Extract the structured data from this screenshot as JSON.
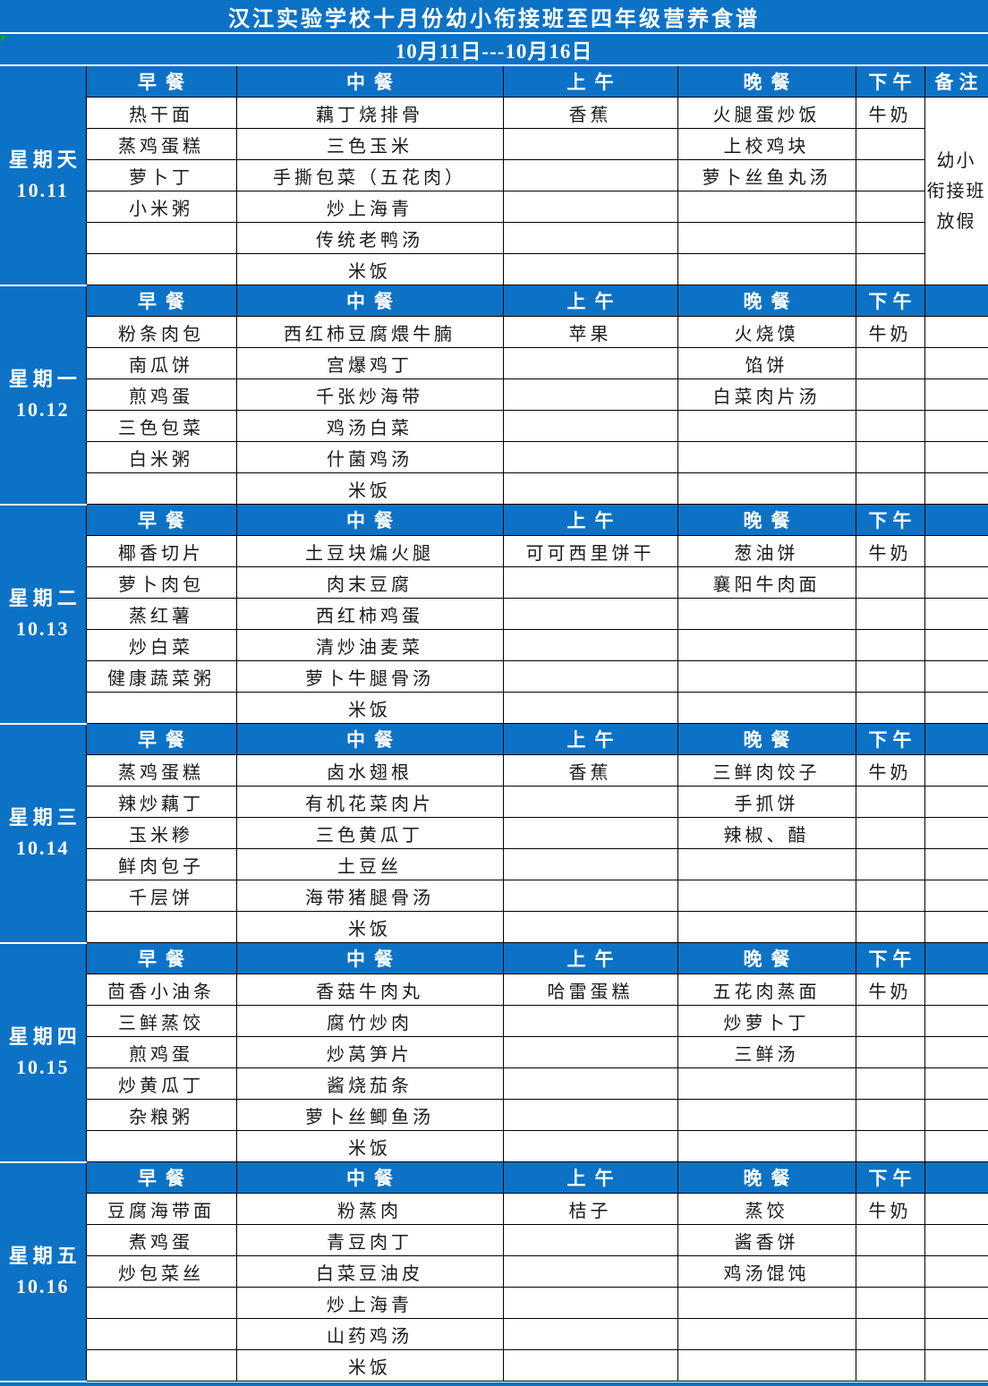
{
  "title": "汉江实验学校十月份幼小衔接班至四年级营养食谱",
  "date_range": "10月11日---10月16日",
  "columns": [
    "早餐",
    "中餐",
    "上午",
    "晚餐",
    "下午",
    "备注"
  ],
  "colors": {
    "primary_blue": "#0c72c6",
    "grid_line": "#000000",
    "header_text": "#ffffff",
    "food_text": "#1a1a1a"
  },
  "days": [
    {
      "weekday": "星期天",
      "date": "10.11",
      "remark": "幼小\n衔接班\n放假",
      "rows": [
        [
          "热干面",
          "藕丁烧排骨",
          "香蕉",
          "火腿蛋炒饭",
          "牛奶"
        ],
        [
          "蒸鸡蛋糕",
          "三色玉米",
          "",
          "上校鸡块",
          ""
        ],
        [
          "萝卜丁",
          "手撕包菜（五花肉）",
          "",
          "萝卜丝鱼丸汤",
          ""
        ],
        [
          "小米粥",
          "炒上海青",
          "",
          "",
          ""
        ],
        [
          "",
          "传统老鸭汤",
          "",
          "",
          ""
        ],
        [
          "",
          "米饭",
          "",
          "",
          ""
        ]
      ]
    },
    {
      "weekday": "星期一",
      "date": "10.12",
      "remark": "",
      "rows": [
        [
          "粉条肉包",
          "西红柿豆腐煨牛腩",
          "苹果",
          "火烧馍",
          "牛奶"
        ],
        [
          "南瓜饼",
          "宫爆鸡丁",
          "",
          "馅饼",
          ""
        ],
        [
          "煎鸡蛋",
          "千张炒海带",
          "",
          "白菜肉片汤",
          ""
        ],
        [
          "三色包菜",
          "鸡汤白菜",
          "",
          "",
          ""
        ],
        [
          "白米粥",
          "什菌鸡汤",
          "",
          "",
          ""
        ],
        [
          "",
          "米饭",
          "",
          "",
          ""
        ]
      ]
    },
    {
      "weekday": "星期二",
      "date": "10.13",
      "remark": "",
      "rows": [
        [
          "椰香切片",
          "土豆块煸火腿",
          "可可西里饼干",
          "葱油饼",
          "牛奶"
        ],
        [
          "萝卜肉包",
          "肉末豆腐",
          "",
          "襄阳牛肉面",
          ""
        ],
        [
          "蒸红薯",
          "西红柿鸡蛋",
          "",
          "",
          ""
        ],
        [
          "炒白菜",
          "清炒油麦菜",
          "",
          "",
          ""
        ],
        [
          "健康蔬菜粥",
          "萝卜牛腿骨汤",
          "",
          "",
          ""
        ],
        [
          "",
          "米饭",
          "",
          "",
          ""
        ]
      ]
    },
    {
      "weekday": "星期三",
      "date": "10.14",
      "remark": "",
      "rows": [
        [
          "蒸鸡蛋糕",
          "卤水翅根",
          "香蕉",
          "三鲜肉饺子",
          "牛奶"
        ],
        [
          "辣炒藕丁",
          "有机花菜肉片",
          "",
          "手抓饼",
          ""
        ],
        [
          "玉米糁",
          "三色黄瓜丁",
          "",
          "辣椒、醋",
          ""
        ],
        [
          "鲜肉包子",
          "土豆丝",
          "",
          "",
          ""
        ],
        [
          "千层饼",
          "海带猪腿骨汤",
          "",
          "",
          ""
        ],
        [
          "",
          "米饭",
          "",
          "",
          ""
        ]
      ]
    },
    {
      "weekday": "星期四",
      "date": "10.15",
      "remark": "",
      "rows": [
        [
          "茴香小油条",
          "香菇牛肉丸",
          "哈雷蛋糕",
          "五花肉蒸面",
          "牛奶"
        ],
        [
          "三鲜蒸饺",
          "腐竹炒肉",
          "",
          "炒萝卜丁",
          ""
        ],
        [
          "煎鸡蛋",
          "炒莴笋片",
          "",
          "三鲜汤",
          ""
        ],
        [
          "炒黄瓜丁",
          "酱烧茄条",
          "",
          "",
          ""
        ],
        [
          "杂粮粥",
          "萝卜丝鲫鱼汤",
          "",
          "",
          ""
        ],
        [
          "",
          "米饭",
          "",
          "",
          ""
        ]
      ]
    },
    {
      "weekday": "星期五",
      "date": "10.16",
      "remark": "",
      "rows": [
        [
          "豆腐海带面",
          "粉蒸肉",
          "桔子",
          "蒸饺",
          "牛奶"
        ],
        [
          "煮鸡蛋",
          "青豆肉丁",
          "",
          "酱香饼",
          ""
        ],
        [
          "炒包菜丝",
          "白菜豆油皮",
          "",
          "鸡汤馄饨",
          ""
        ],
        [
          "",
          "炒上海青",
          "",
          "",
          ""
        ],
        [
          "",
          "山药鸡汤",
          "",
          "",
          ""
        ],
        [
          "",
          "米饭",
          "",
          "",
          ""
        ]
      ]
    }
  ]
}
